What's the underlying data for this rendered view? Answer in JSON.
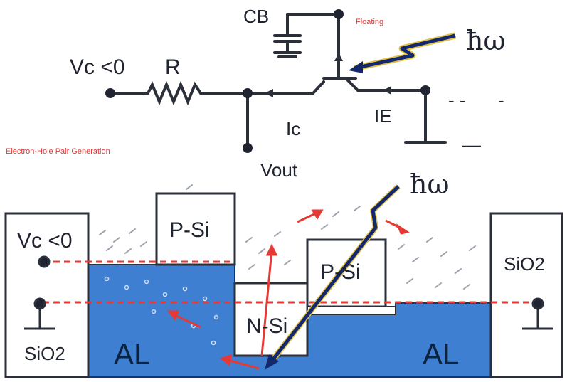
{
  "circuit": {
    "vc_label": "Vc <0",
    "resistor_label": "R",
    "capacitor_label": "CB",
    "floating_label": "Floating",
    "photon_label": "ħω",
    "collector_current": "Ic",
    "emitter_current": "IE",
    "output_label": "Vout",
    "minus_marks": [
      "- -",
      "-",
      "—"
    ]
  },
  "caption": "Electron-Hole Pair Generation",
  "device": {
    "photon_label": "ħω",
    "left_oxide_top": "Vc <0",
    "left_oxide_bottom": "SiO2",
    "right_oxide": "SiO2",
    "p_si_left": "P-Si",
    "p_si_right": "P-Si",
    "n_si": "N-Si",
    "al_left": "AL",
    "al_right": "AL"
  },
  "colors": {
    "wire": "#2b2f3a",
    "aluminum": "#3f7fd1",
    "dashed": "#e53935",
    "photon_arrow": "#14286e",
    "photon_glow": "#e2c046",
    "label_red": "#e53935"
  }
}
